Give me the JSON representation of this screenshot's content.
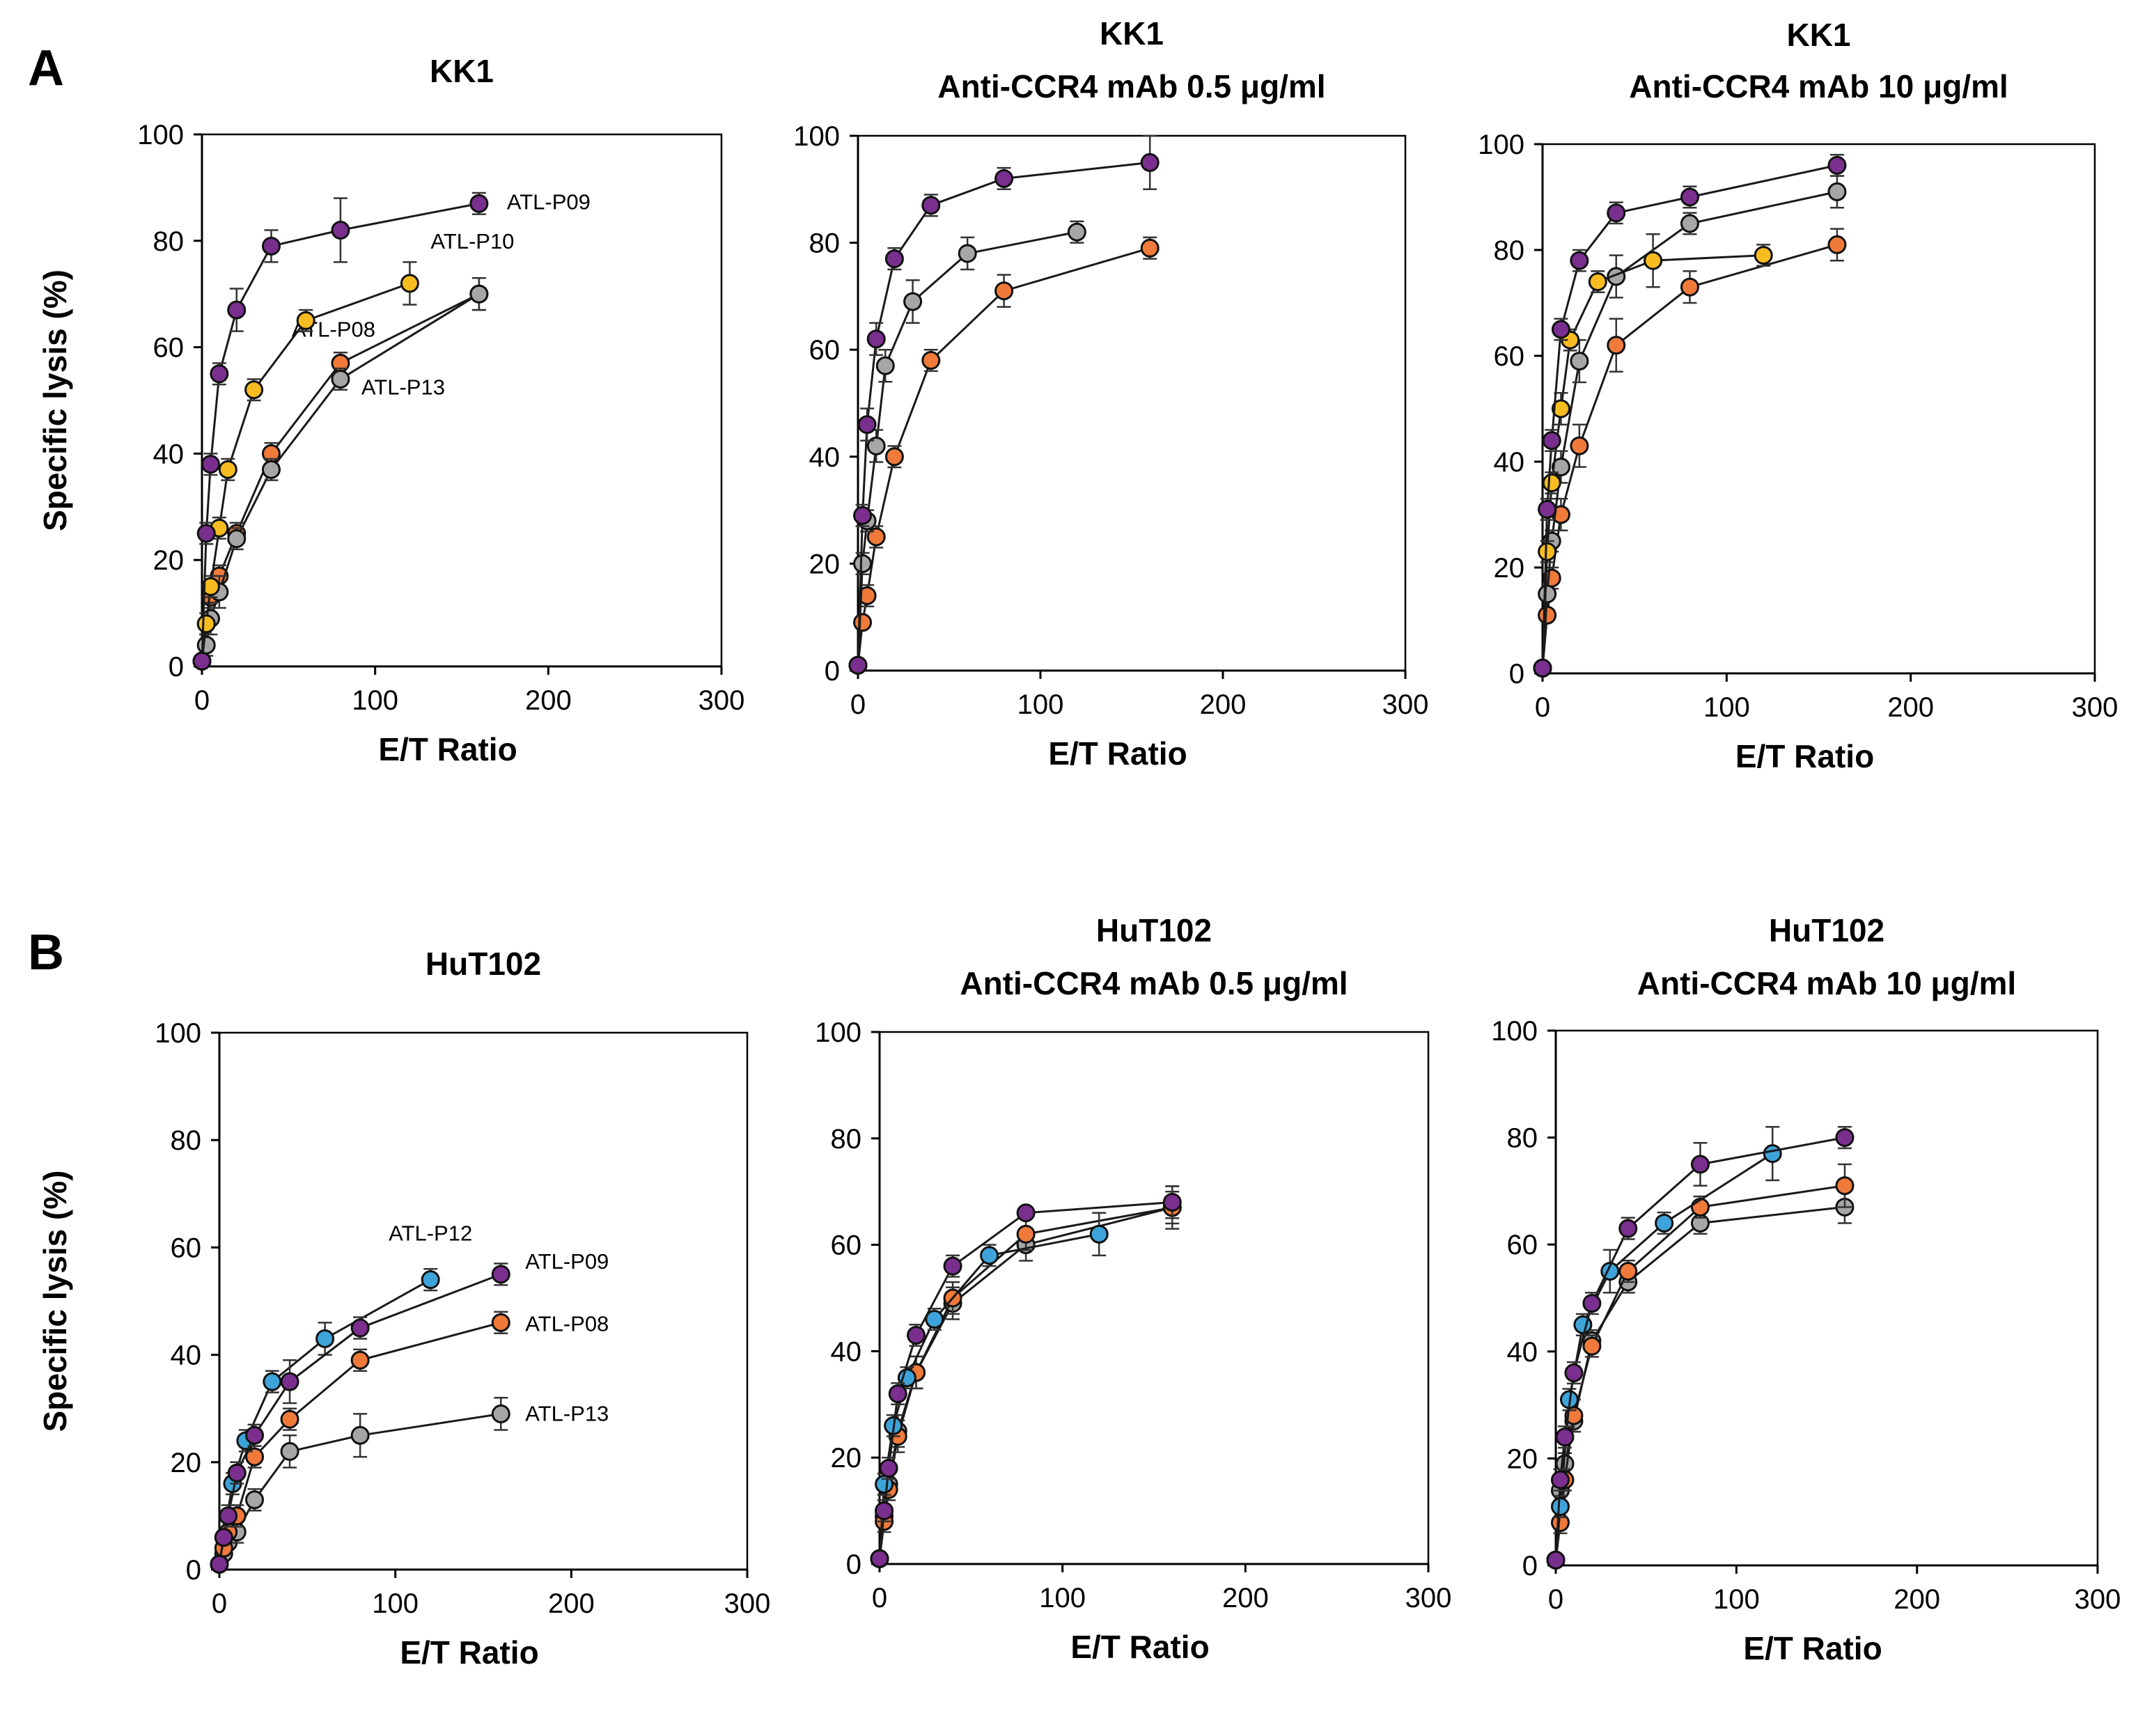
{
  "figure": {
    "panel_letters": [
      "A",
      "B"
    ],
    "colors": {
      "ATL-P08": "#ef7a3a",
      "ATL-P09": "#7a2f8f",
      "ATL-P10": "#f7bc20",
      "ATL-P12": "#3ea3d8",
      "ATL-P13": "#a6a6a6"
    }
  },
  "chart_data": [
    {
      "id": "A1",
      "type": "line",
      "title_lines": [
        "KK1"
      ],
      "xlabel": "E/T Ratio",
      "ylabel": "Specific lysis (%)",
      "xlim": [
        0,
        300
      ],
      "ylim": [
        0,
        100
      ],
      "xticks": [
        0,
        100,
        200,
        300
      ],
      "yticks": [
        0,
        20,
        40,
        60,
        80,
        100
      ],
      "series": [
        {
          "name": "ATL-P08",
          "label": "ATL-P08",
          "x": [
            0,
            2.5,
            5,
            10,
            20,
            40,
            80,
            160
          ],
          "y": [
            1,
            8,
            13,
            17,
            25,
            40,
            57,
            70
          ],
          "err": [
            0,
            2,
            2,
            2,
            2,
            2,
            2,
            3
          ]
        },
        {
          "name": "ATL-P13",
          "label": "ATL-P13",
          "x": [
            0,
            2.5,
            5,
            10,
            20,
            40,
            80,
            160
          ],
          "y": [
            1,
            4,
            9,
            14,
            24,
            37,
            54,
            70
          ],
          "err": [
            0,
            2,
            3,
            3,
            2,
            2,
            2,
            3
          ]
        },
        {
          "name": "ATL-P10",
          "label": "ATL-P10",
          "x": [
            0,
            2.5,
            5,
            10,
            15,
            30,
            60,
            120
          ],
          "y": [
            1,
            8,
            15,
            26,
            37,
            52,
            65,
            72
          ],
          "err": [
            0,
            1,
            2,
            2,
            2,
            2,
            2,
            4
          ]
        },
        {
          "name": "ATL-P09",
          "label": "ATL-P09",
          "x": [
            0,
            2.5,
            5,
            10,
            20,
            40,
            80,
            160
          ],
          "y": [
            1,
            25,
            38,
            55,
            67,
            79,
            82,
            87
          ],
          "err": [
            0,
            2,
            2,
            2,
            4,
            3,
            6,
            2
          ]
        }
      ]
    },
    {
      "id": "A2",
      "type": "line",
      "title_lines": [
        "KK1",
        "Anti-CCR4 mAb 0.5 μg/ml"
      ],
      "xlabel": "E/T Ratio",
      "ylabel": "",
      "xlim": [
        0,
        300
      ],
      "ylim": [
        0,
        100
      ],
      "xticks": [
        0,
        100,
        200,
        300
      ],
      "yticks": [
        0,
        20,
        40,
        60,
        80,
        100
      ],
      "series": [
        {
          "name": "ATL-P08",
          "x": [
            0,
            2.5,
            5,
            10,
            20,
            40,
            80,
            160
          ],
          "y": [
            1,
            9,
            14,
            25,
            40,
            58,
            71,
            79
          ],
          "err": [
            0,
            1,
            2,
            2,
            2,
            2,
            3,
            2
          ]
        },
        {
          "name": "ATL-P13",
          "x": [
            0,
            2.5,
            5,
            10,
            15,
            30,
            60,
            120
          ],
          "y": [
            1,
            20,
            28,
            42,
            57,
            69,
            78,
            82
          ],
          "err": [
            0,
            2,
            2,
            3,
            3,
            4,
            3,
            2
          ]
        },
        {
          "name": "ATL-P09",
          "x": [
            0,
            2.5,
            5,
            10,
            20,
            40,
            80,
            160
          ],
          "y": [
            1,
            29,
            46,
            62,
            77,
            87,
            92,
            95
          ],
          "err": [
            0,
            2,
            3,
            3,
            2,
            2,
            2,
            5
          ]
        }
      ]
    },
    {
      "id": "A3",
      "type": "line",
      "title_lines": [
        "KK1",
        "Anti-CCR4 mAb 10 μg/ml"
      ],
      "xlabel": "E/T Ratio",
      "ylabel": "",
      "xlim": [
        0,
        300
      ],
      "ylim": [
        0,
        100
      ],
      "xticks": [
        0,
        100,
        200,
        300
      ],
      "yticks": [
        0,
        20,
        40,
        60,
        80,
        100
      ],
      "series": [
        {
          "name": "ATL-P08",
          "x": [
            0,
            2.5,
            5,
            10,
            20,
            40,
            80,
            160
          ],
          "y": [
            1,
            11,
            18,
            30,
            43,
            62,
            73,
            81
          ],
          "err": [
            0,
            1,
            2,
            3,
            4,
            5,
            3,
            3
          ]
        },
        {
          "name": "ATL-P13",
          "x": [
            0,
            2.5,
            5,
            10,
            20,
            40,
            80,
            160
          ],
          "y": [
            1,
            15,
            25,
            39,
            59,
            75,
            85,
            91
          ],
          "err": [
            0,
            1,
            2,
            3,
            4,
            4,
            2,
            3
          ]
        },
        {
          "name": "ATL-P10",
          "x": [
            0,
            2.5,
            5,
            10,
            15,
            30,
            60,
            120
          ],
          "y": [
            1,
            23,
            36,
            50,
            63,
            74,
            78,
            79
          ],
          "err": [
            0,
            2,
            2,
            3,
            2,
            2,
            5,
            2
          ]
        },
        {
          "name": "ATL-P09",
          "x": [
            0,
            2.5,
            5,
            10,
            20,
            40,
            80,
            160
          ],
          "y": [
            1,
            31,
            44,
            65,
            78,
            87,
            90,
            96
          ],
          "err": [
            0,
            2,
            2,
            2,
            2,
            2,
            2,
            2
          ]
        }
      ]
    },
    {
      "id": "B1",
      "type": "line",
      "title_lines": [
        "HuT102"
      ],
      "xlabel": "E/T Ratio",
      "ylabel": "Specific lysis (%)",
      "xlim": [
        0,
        300
      ],
      "ylim": [
        0,
        100
      ],
      "xticks": [
        0,
        100,
        200,
        300
      ],
      "yticks": [
        0,
        20,
        40,
        60,
        80,
        100
      ],
      "series": [
        {
          "name": "ATL-P13",
          "label": "ATL-P13",
          "x": [
            0,
            2.5,
            5,
            10,
            20,
            40,
            80,
            160
          ],
          "y": [
            1,
            3,
            5,
            7,
            13,
            22,
            25,
            29
          ],
          "err": [
            0,
            1,
            1,
            2,
            2,
            3,
            4,
            3
          ]
        },
        {
          "name": "ATL-P08",
          "label": "ATL-P08",
          "x": [
            0,
            2.5,
            5,
            10,
            20,
            40,
            80,
            160
          ],
          "y": [
            1,
            4,
            7,
            10,
            21,
            28,
            39,
            46
          ],
          "err": [
            0,
            1,
            1,
            2,
            2,
            2,
            2,
            2
          ]
        },
        {
          "name": "ATL-P12",
          "label": "ATL-P12",
          "x": [
            0,
            2.5,
            7.5,
            15,
            30,
            60,
            120
          ],
          "y": [
            1,
            6,
            16,
            24,
            35,
            43,
            54
          ],
          "err": [
            0,
            1,
            2,
            2,
            2,
            3,
            2
          ]
        },
        {
          "name": "ATL-P09",
          "label": "ATL-P09",
          "x": [
            0,
            2.5,
            5,
            10,
            20,
            40,
            80,
            160
          ],
          "y": [
            1,
            6,
            10,
            18,
            25,
            35,
            45,
            55
          ],
          "err": [
            0,
            1,
            2,
            2,
            2,
            4,
            2,
            2
          ]
        }
      ]
    },
    {
      "id": "B2",
      "type": "line",
      "title_lines": [
        "HuT102",
        "Anti-CCR4 mAb 0.5 μg/ml"
      ],
      "xlabel": "E/T Ratio",
      "ylabel": "",
      "xlim": [
        0,
        300
      ],
      "ylim": [
        0,
        100
      ],
      "xticks": [
        0,
        100,
        200,
        300
      ],
      "yticks": [
        0,
        20,
        40,
        60,
        80,
        100
      ],
      "series": [
        {
          "name": "ATL-P13",
          "x": [
            0,
            2.5,
            5,
            10,
            20,
            40,
            80,
            160
          ],
          "y": [
            1,
            9,
            15,
            25,
            36,
            49,
            60,
            67
          ],
          "err": [
            0,
            2,
            2,
            3,
            3,
            3,
            3,
            4
          ]
        },
        {
          "name": "ATL-P08",
          "x": [
            0,
            2.5,
            5,
            10,
            20,
            40,
            80,
            160
          ],
          "y": [
            1,
            8,
            14,
            24,
            36,
            50,
            62,
            67
          ],
          "err": [
            0,
            2,
            2,
            3,
            3,
            3,
            3,
            3
          ]
        },
        {
          "name": "ATL-P12",
          "x": [
            0,
            2.5,
            7.5,
            15,
            30,
            60,
            120
          ],
          "y": [
            1,
            15,
            26,
            35,
            46,
            58,
            62
          ],
          "err": [
            0,
            2,
            2,
            2,
            2,
            2,
            4
          ]
        },
        {
          "name": "ATL-P09",
          "x": [
            0,
            2.5,
            5,
            10,
            20,
            40,
            80,
            160
          ],
          "y": [
            1,
            10,
            18,
            32,
            43,
            56,
            66,
            68
          ],
          "err": [
            0,
            2,
            2,
            2,
            2,
            2,
            1,
            3
          ]
        }
      ]
    },
    {
      "id": "B3",
      "type": "line",
      "title_lines": [
        "HuT102",
        "Anti-CCR4 mAb 10 μg/ml"
      ],
      "xlabel": "E/T Ratio",
      "ylabel": "",
      "xlim": [
        0,
        300
      ],
      "ylim": [
        0,
        100
      ],
      "xticks": [
        0,
        100,
        200,
        300
      ],
      "yticks": [
        0,
        20,
        40,
        60,
        80,
        100
      ],
      "series": [
        {
          "name": "ATL-P13",
          "x": [
            0,
            2.5,
            5,
            10,
            20,
            40,
            80,
            160
          ],
          "y": [
            1,
            14,
            19,
            27,
            42,
            53,
            64,
            67
          ],
          "err": [
            0,
            2,
            2,
            2,
            2,
            2,
            2,
            3
          ]
        },
        {
          "name": "ATL-P08",
          "x": [
            0,
            2.5,
            5,
            10,
            20,
            40,
            80,
            160
          ],
          "y": [
            1,
            8,
            16,
            28,
            41,
            55,
            67,
            71
          ],
          "err": [
            0,
            2,
            2,
            3,
            2,
            2,
            2,
            4
          ]
        },
        {
          "name": "ATL-P12",
          "x": [
            0,
            2.5,
            7.5,
            15,
            30,
            60,
            120
          ],
          "y": [
            1,
            11,
            31,
            45,
            55,
            64,
            77
          ],
          "err": [
            0,
            2,
            2,
            2,
            4,
            2,
            5
          ]
        },
        {
          "name": "ATL-P09",
          "x": [
            0,
            2.5,
            5,
            10,
            20,
            40,
            80,
            160
          ],
          "y": [
            1,
            16,
            24,
            36,
            49,
            63,
            75,
            80
          ],
          "err": [
            0,
            2,
            2,
            2,
            2,
            2,
            4,
            2
          ]
        }
      ]
    }
  ]
}
